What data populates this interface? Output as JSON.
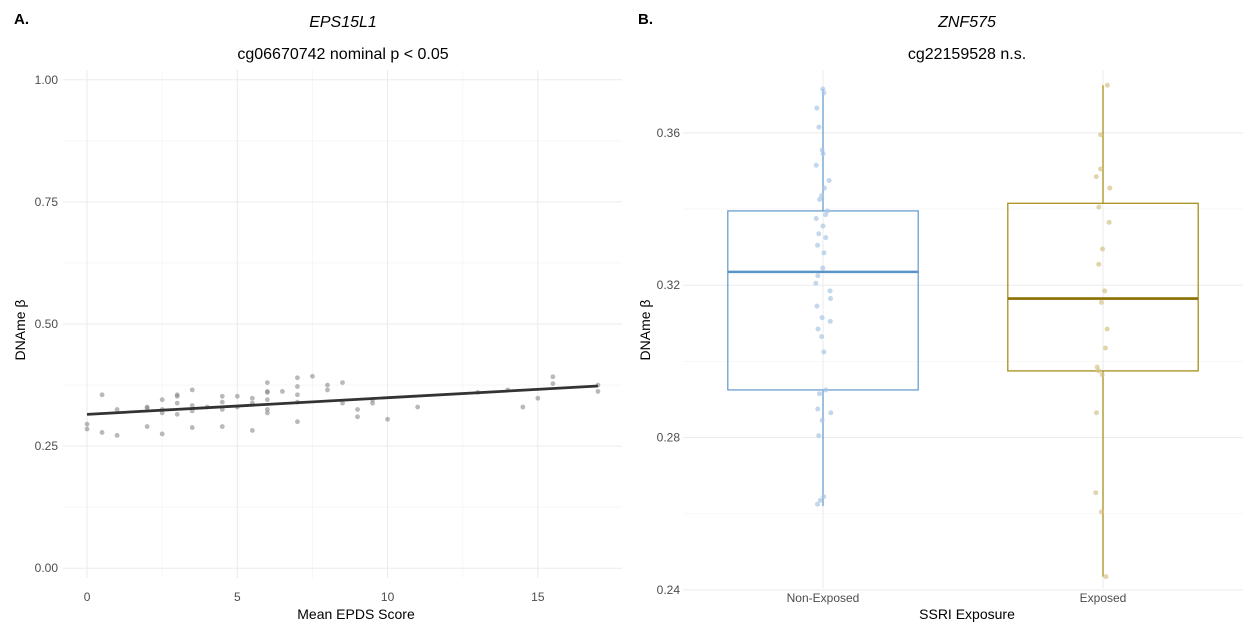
{
  "chart_data": [
    {
      "type": "scatter",
      "panel_label": "A.",
      "title": "EPS15L1",
      "subtitle": "cg06670742 nominal p < 0.05",
      "xlabel": "Mean EPDS Score",
      "ylabel": "DNAme β",
      "xlim": [
        -0.8,
        17.8
      ],
      "ylim": [
        -0.02,
        1.02
      ],
      "x_ticks": [
        0,
        5,
        10,
        15
      ],
      "y_ticks": [
        0.0,
        0.25,
        0.5,
        0.75,
        1.0
      ],
      "y_tick_labels": [
        "0.00",
        "0.25",
        "0.50",
        "0.75",
        "1.00"
      ],
      "grid": true,
      "point_color": "#808080",
      "line_color": "#333333",
      "points": [
        {
          "x": 0,
          "y": 0.285
        },
        {
          "x": 0,
          "y": 0.295
        },
        {
          "x": 0.5,
          "y": 0.355
        },
        {
          "x": 0.5,
          "y": 0.278
        },
        {
          "x": 1,
          "y": 0.325
        },
        {
          "x": 1,
          "y": 0.272
        },
        {
          "x": 2,
          "y": 0.328
        },
        {
          "x": 2,
          "y": 0.33
        },
        {
          "x": 2,
          "y": 0.29
        },
        {
          "x": 2.5,
          "y": 0.345
        },
        {
          "x": 2.5,
          "y": 0.325
        },
        {
          "x": 2.5,
          "y": 0.318
        },
        {
          "x": 2.5,
          "y": 0.275
        },
        {
          "x": 3,
          "y": 0.355
        },
        {
          "x": 3,
          "y": 0.352
        },
        {
          "x": 3,
          "y": 0.338
        },
        {
          "x": 3,
          "y": 0.315
        },
        {
          "x": 3.5,
          "y": 0.365
        },
        {
          "x": 3.5,
          "y": 0.333
        },
        {
          "x": 3.5,
          "y": 0.322
        },
        {
          "x": 3.5,
          "y": 0.288
        },
        {
          "x": 4,
          "y": 0.33
        },
        {
          "x": 4.5,
          "y": 0.352
        },
        {
          "x": 4.5,
          "y": 0.34
        },
        {
          "x": 4.5,
          "y": 0.325
        },
        {
          "x": 4.5,
          "y": 0.29
        },
        {
          "x": 5,
          "y": 0.352
        },
        {
          "x": 5,
          "y": 0.33
        },
        {
          "x": 5.5,
          "y": 0.348
        },
        {
          "x": 5.5,
          "y": 0.338
        },
        {
          "x": 5.5,
          "y": 0.282
        },
        {
          "x": 6,
          "y": 0.38
        },
        {
          "x": 6,
          "y": 0.362
        },
        {
          "x": 6,
          "y": 0.36
        },
        {
          "x": 6,
          "y": 0.345
        },
        {
          "x": 6,
          "y": 0.325
        },
        {
          "x": 6,
          "y": 0.318
        },
        {
          "x": 6.5,
          "y": 0.362
        },
        {
          "x": 7,
          "y": 0.39
        },
        {
          "x": 7,
          "y": 0.372
        },
        {
          "x": 7,
          "y": 0.355
        },
        {
          "x": 7,
          "y": 0.34
        },
        {
          "x": 7,
          "y": 0.3
        },
        {
          "x": 7.5,
          "y": 0.393
        },
        {
          "x": 8,
          "y": 0.375
        },
        {
          "x": 8,
          "y": 0.365
        },
        {
          "x": 8.5,
          "y": 0.38
        },
        {
          "x": 8.5,
          "y": 0.338
        },
        {
          "x": 9,
          "y": 0.325
        },
        {
          "x": 9,
          "y": 0.31
        },
        {
          "x": 9.5,
          "y": 0.345
        },
        {
          "x": 9.5,
          "y": 0.338
        },
        {
          "x": 10,
          "y": 0.305
        },
        {
          "x": 11,
          "y": 0.33
        },
        {
          "x": 13,
          "y": 0.36
        },
        {
          "x": 14,
          "y": 0.365
        },
        {
          "x": 14.5,
          "y": 0.33
        },
        {
          "x": 15,
          "y": 0.348
        },
        {
          "x": 15.5,
          "y": 0.392
        },
        {
          "x": 15.5,
          "y": 0.378
        },
        {
          "x": 17,
          "y": 0.375
        },
        {
          "x": 17,
          "y": 0.362
        }
      ],
      "fit_line": {
        "x": [
          0,
          17
        ],
        "y": [
          0.315,
          0.373
        ]
      }
    },
    {
      "type": "box",
      "panel_label": "B.",
      "title": "ZNF575",
      "subtitle": "cg22159528 n.s.",
      "xlabel": "SSRI Exposure",
      "ylabel": "DNAme β",
      "categories": [
        "Non-Exposed",
        "Exposed"
      ],
      "ylim": [
        0.2405,
        0.3765
      ],
      "y_ticks": [
        0.24,
        0.28,
        0.32,
        0.36
      ],
      "y_tick_labels": [
        "0.24",
        "0.28",
        "0.32",
        "0.36"
      ],
      "grid": true,
      "colors": [
        "#6a9fcf",
        "#a8901c"
      ],
      "median_colors": [
        "#5b95c8",
        "#8c6d00"
      ],
      "point_colors": [
        "#a9c6e6",
        "#d6c287"
      ],
      "boxes": [
        {
          "category": "Non-Exposed",
          "min": 0.262,
          "q1": 0.2925,
          "median": 0.3235,
          "q3": 0.3395,
          "max": 0.3715
        },
        {
          "category": "Exposed",
          "min": 0.2435,
          "q1": 0.2975,
          "median": 0.3165,
          "q3": 0.3415,
          "max": 0.3725
        }
      ],
      "points": [
        {
          "category": "Non-Exposed",
          "y": [
            0.3715,
            0.3705,
            0.3665,
            0.3615,
            0.3555,
            0.3545,
            0.3515,
            0.3475,
            0.3455,
            0.3435,
            0.3425,
            0.3395,
            0.3385,
            0.3375,
            0.3355,
            0.3335,
            0.3325,
            0.3305,
            0.3285,
            0.3245,
            0.3225,
            0.3205,
            0.3185,
            0.3165,
            0.3145,
            0.3115,
            0.3105,
            0.3085,
            0.3065,
            0.3025,
            0.2925,
            0.2915,
            0.2875,
            0.2865,
            0.2845,
            0.2805,
            0.2645,
            0.2635,
            0.2625
          ]
        },
        {
          "category": "Exposed",
          "y": [
            0.3725,
            0.3595,
            0.3505,
            0.3485,
            0.3455,
            0.3405,
            0.3365,
            0.3295,
            0.3255,
            0.3185,
            0.3155,
            0.3085,
            0.3035,
            0.2985,
            0.2975,
            0.2965,
            0.2865,
            0.2655,
            0.2605,
            0.2435
          ]
        }
      ]
    }
  ]
}
